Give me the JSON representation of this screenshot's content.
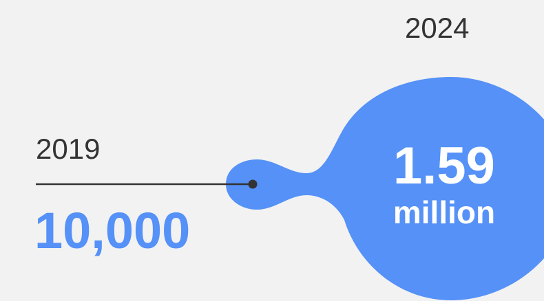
{
  "start": {
    "year": "2019",
    "value": "10,000"
  },
  "end": {
    "year": "2024",
    "value": "1.59",
    "unit": "million"
  },
  "colors": {
    "accent": "#5591f7",
    "background": "#f2f2f2",
    "text": "#333333",
    "line": "#333333"
  }
}
